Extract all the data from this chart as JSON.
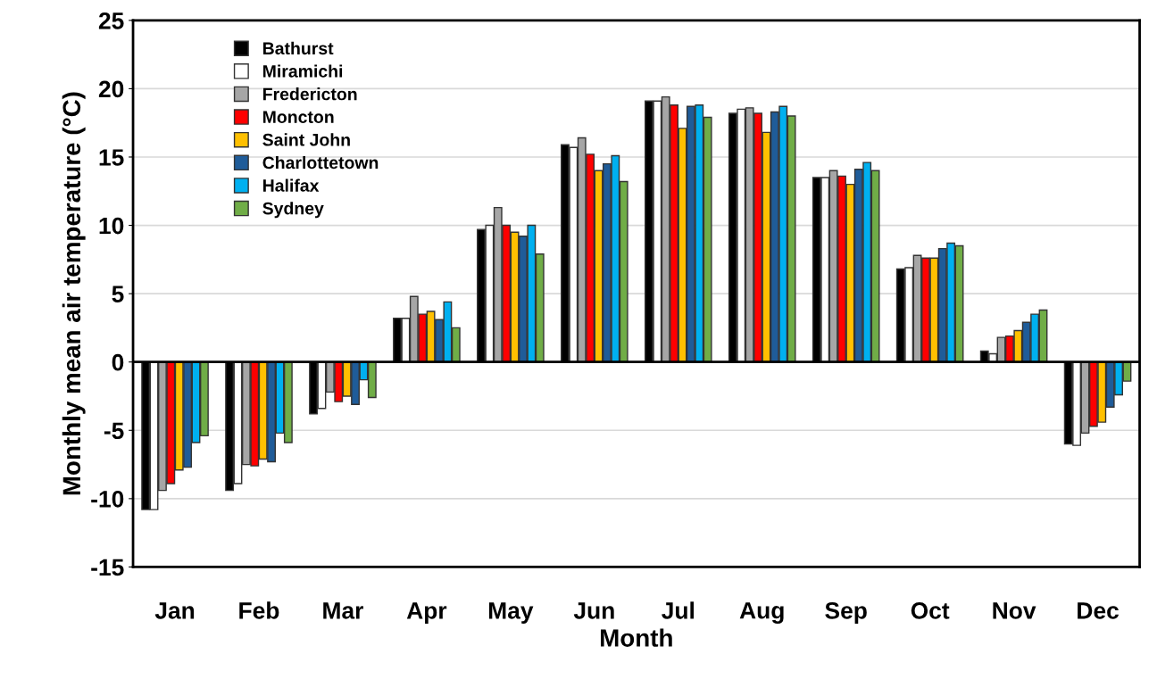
{
  "chart_data": {
    "type": "bar",
    "xlabel": "Month",
    "ylabel": "Monthly mean air temperature (°C)",
    "categories": [
      "Jan",
      "Feb",
      "Mar",
      "Apr",
      "May",
      "Jun",
      "Jul",
      "Aug",
      "Sep",
      "Oct",
      "Nov",
      "Dec"
    ],
    "ylim": [
      -15,
      25
    ],
    "yticks": [
      -15,
      -10,
      -5,
      0,
      5,
      10,
      15,
      20,
      25
    ],
    "grid": "y",
    "legend": "top left",
    "series": [
      {
        "name": "Bathurst",
        "color": "#000000",
        "values": [
          -10.8,
          -9.4,
          -3.8,
          3.2,
          9.7,
          15.9,
          19.1,
          18.2,
          13.5,
          6.8,
          0.8,
          -6.0
        ]
      },
      {
        "name": "Miramichi",
        "color": "#ffffff",
        "values": [
          -10.8,
          -8.9,
          -3.4,
          3.2,
          10.0,
          15.7,
          19.1,
          18.5,
          13.5,
          6.9,
          0.6,
          -6.1
        ]
      },
      {
        "name": "Fredericton",
        "color": "#a6a6a6",
        "values": [
          -9.4,
          -7.5,
          -2.2,
          4.8,
          11.3,
          16.4,
          19.4,
          18.6,
          14.0,
          7.8,
          1.8,
          -5.2
        ]
      },
      {
        "name": "Moncton",
        "color": "#ff0000",
        "values": [
          -8.9,
          -7.6,
          -2.9,
          3.5,
          10.0,
          15.2,
          18.8,
          18.2,
          13.6,
          7.6,
          1.9,
          -4.7
        ]
      },
      {
        "name": "Saint John",
        "color": "#ffc000",
        "values": [
          -7.9,
          -7.1,
          -2.5,
          3.7,
          9.5,
          14.0,
          17.1,
          16.8,
          13.0,
          7.6,
          2.3,
          -4.4
        ]
      },
      {
        "name": "Charlottetown",
        "color": "#1f5c99",
        "values": [
          -7.7,
          -7.3,
          -3.1,
          3.1,
          9.2,
          14.5,
          18.7,
          18.3,
          14.1,
          8.3,
          2.9,
          -3.3
        ]
      },
      {
        "name": "Halifax",
        "color": "#00b0f0",
        "values": [
          -5.9,
          -5.2,
          -1.3,
          4.4,
          10.0,
          15.1,
          18.8,
          18.7,
          14.6,
          8.7,
          3.5,
          -2.4
        ]
      },
      {
        "name": "Sydney",
        "color": "#70ad47",
        "values": [
          -5.4,
          -5.9,
          -2.6,
          2.5,
          7.9,
          13.2,
          17.9,
          18.0,
          14.0,
          8.5,
          3.8,
          -1.4
        ]
      }
    ]
  }
}
